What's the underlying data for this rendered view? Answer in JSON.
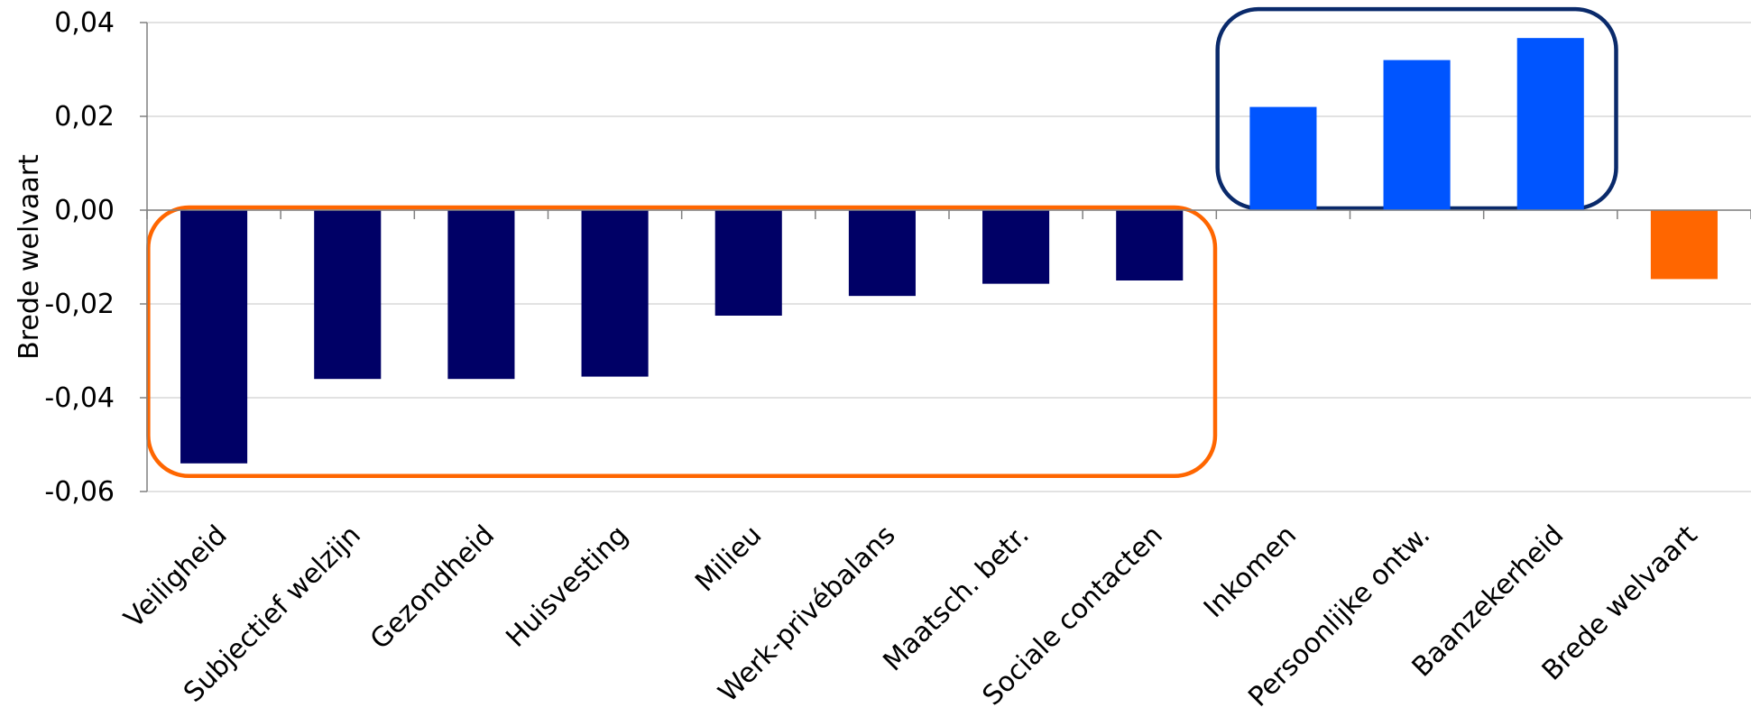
{
  "chart_data": {
    "type": "bar",
    "title": "",
    "xlabel": "",
    "ylabel": "Brede welvaart",
    "ylim": [
      -0.06,
      0.04
    ],
    "yticks": [
      0.04,
      0.02,
      0.0,
      -0.02,
      -0.04,
      -0.06
    ],
    "ytick_labels": [
      "0,04",
      "0,02",
      "0,00",
      "-0,02",
      "-0,04",
      "-0,06"
    ],
    "grid": true,
    "legend": "none",
    "categories": [
      "Veiligheid",
      "Subjectief welzijn",
      "Gezondheid",
      "Huisvesting",
      "Milieu",
      "Werk-privébalans",
      "Maatsch. betr.",
      "Sociale contacten",
      "Inkomen",
      "Persoonlijke ontw.",
      "Baanzekerheid",
      "Brede welvaart"
    ],
    "values": [
      -0.054,
      -0.036,
      -0.036,
      -0.0355,
      -0.0225,
      -0.0183,
      -0.0157,
      -0.015,
      0.022,
      0.032,
      0.0367,
      -0.0147
    ],
    "colors": [
      "#000066",
      "#000066",
      "#000066",
      "#000066",
      "#000066",
      "#000066",
      "#000066",
      "#000066",
      "#0055FF",
      "#0055FF",
      "#0055FF",
      "#FF6600"
    ],
    "groups": [
      {
        "first": 0,
        "last": 7,
        "color": "#FF6600"
      },
      {
        "first": 8,
        "last": 10,
        "color": "#0A2A6B"
      }
    ]
  }
}
